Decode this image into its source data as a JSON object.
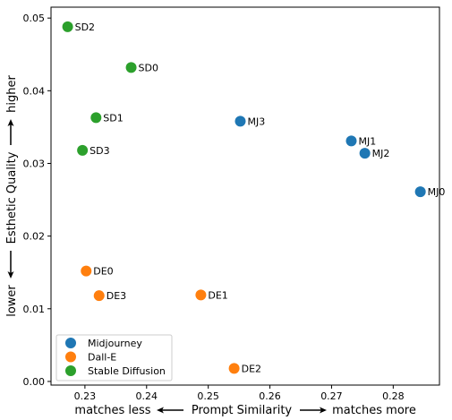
{
  "chart_data": {
    "type": "scatter",
    "title": "",
    "xlabel": {
      "left": "matches less",
      "center": "Prompt Similarity",
      "right": "matches more"
    },
    "ylabel": {
      "low": "lower",
      "center": "Esthetic Quality",
      "high": "higher"
    },
    "xlim": [
      0.2245,
      0.2875
    ],
    "ylim": [
      -0.0005,
      0.0515
    ],
    "xticks": [
      0.23,
      0.24,
      0.25,
      0.26,
      0.27,
      0.28
    ],
    "xtick_labels": [
      "0.23",
      "0.24",
      "0.25",
      "0.26",
      "0.27",
      "0.28"
    ],
    "yticks": [
      0.0,
      0.01,
      0.02,
      0.03,
      0.04,
      0.05
    ],
    "ytick_labels": [
      "0.00",
      "0.01",
      "0.02",
      "0.03",
      "0.04",
      "0.05"
    ],
    "grid": false,
    "legend_position": "lower-left",
    "series": [
      {
        "name": "Midjourney",
        "color": "#1f77b4",
        "points": [
          {
            "label": "MJ0",
            "x": 0.2844,
            "y": 0.0261
          },
          {
            "label": "MJ1",
            "x": 0.2732,
            "y": 0.0331
          },
          {
            "label": "MJ2",
            "x": 0.2754,
            "y": 0.0314
          },
          {
            "label": "MJ3",
            "x": 0.2552,
            "y": 0.0358
          }
        ]
      },
      {
        "name": "Dall-E",
        "color": "#ff7f0e",
        "points": [
          {
            "label": "DE0",
            "x": 0.2302,
            "y": 0.0152
          },
          {
            "label": "DE1",
            "x": 0.2488,
            "y": 0.0119
          },
          {
            "label": "DE2",
            "x": 0.2542,
            "y": 0.0018
          },
          {
            "label": "DE3",
            "x": 0.2323,
            "y": 0.0118
          }
        ]
      },
      {
        "name": "Stable Diffusion",
        "color": "#2ca02c",
        "points": [
          {
            "label": "SD0",
            "x": 0.2375,
            "y": 0.0432
          },
          {
            "label": "SD1",
            "x": 0.2318,
            "y": 0.0363
          },
          {
            "label": "SD2",
            "x": 0.2272,
            "y": 0.0488
          },
          {
            "label": "SD3",
            "x": 0.2296,
            "y": 0.0318
          }
        ]
      }
    ]
  }
}
